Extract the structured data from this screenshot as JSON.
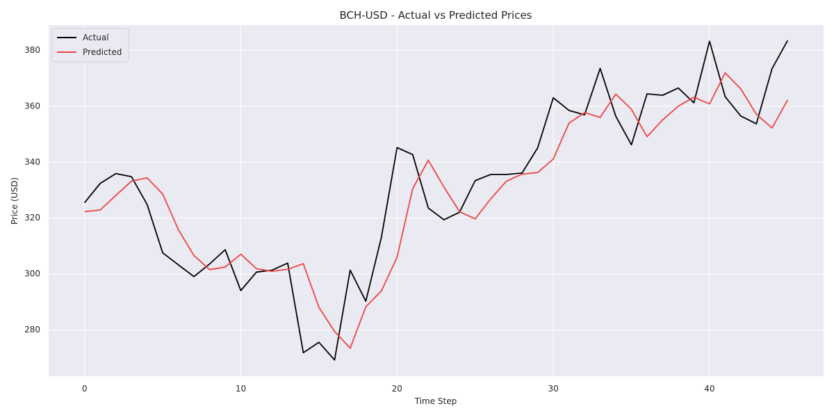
{
  "chart_data": {
    "type": "line",
    "title": "BCH-USD - Actual vs Predicted Prices",
    "xlabel": "Time Step",
    "ylabel": "Price (USD)",
    "xlim": [
      -2.3,
      47.3
    ],
    "ylim": [
      263.4,
      388.9
    ],
    "x_ticks": [
      0,
      10,
      20,
      30,
      40
    ],
    "y_ticks": [
      280,
      300,
      320,
      340,
      360,
      380
    ],
    "grid": true,
    "legend_position": "upper left",
    "x": [
      0,
      1,
      2,
      3,
      4,
      5,
      6,
      7,
      8,
      9,
      10,
      11,
      12,
      13,
      14,
      15,
      16,
      17,
      18,
      19,
      20,
      21,
      22,
      23,
      24,
      25,
      26,
      27,
      28,
      29,
      30,
      31,
      32,
      33,
      34,
      35,
      36,
      37,
      38,
      39,
      40,
      41,
      42,
      43,
      44,
      45
    ],
    "series": [
      {
        "name": "Actual",
        "color": "#000000",
        "values": [
          325.4,
          332.3,
          335.8,
          334.7,
          324.8,
          307.5,
          303.2,
          299.0,
          303.5,
          308.6,
          294.0,
          300.6,
          301.3,
          303.8,
          271.8,
          275.5,
          269.2,
          301.3,
          290.2,
          313.1,
          345.1,
          342.6,
          323.5,
          319.3,
          322.0,
          333.3,
          335.5,
          335.5,
          336.0,
          345.0,
          362.9,
          358.4,
          356.8,
          373.4,
          356.3,
          346.1,
          364.3,
          363.8,
          366.4,
          361.1,
          383.1,
          363.3,
          356.4,
          353.6,
          373.3,
          383.4
        ]
      },
      {
        "name": "Predicted",
        "color": "#f04444",
        "values": [
          322.2,
          322.8,
          328.0,
          333.1,
          334.3,
          328.5,
          315.8,
          306.5,
          301.5,
          302.4,
          307.0,
          301.8,
          300.9,
          301.6,
          303.6,
          288.0,
          279.4,
          273.4,
          288.2,
          293.9,
          305.9,
          330.4,
          340.6,
          331.0,
          322.2,
          319.6,
          326.8,
          333.1,
          335.6,
          336.2,
          341.0,
          353.8,
          357.6,
          355.9,
          364.2,
          358.8,
          349.0,
          355.0,
          359.9,
          363.1,
          360.7,
          371.8,
          366.1,
          357.0,
          352.1,
          362.1
        ]
      }
    ]
  },
  "style": {
    "plot_background": "#eaeaf2",
    "grid_color": "#ffffff",
    "text_color": "#262626"
  }
}
